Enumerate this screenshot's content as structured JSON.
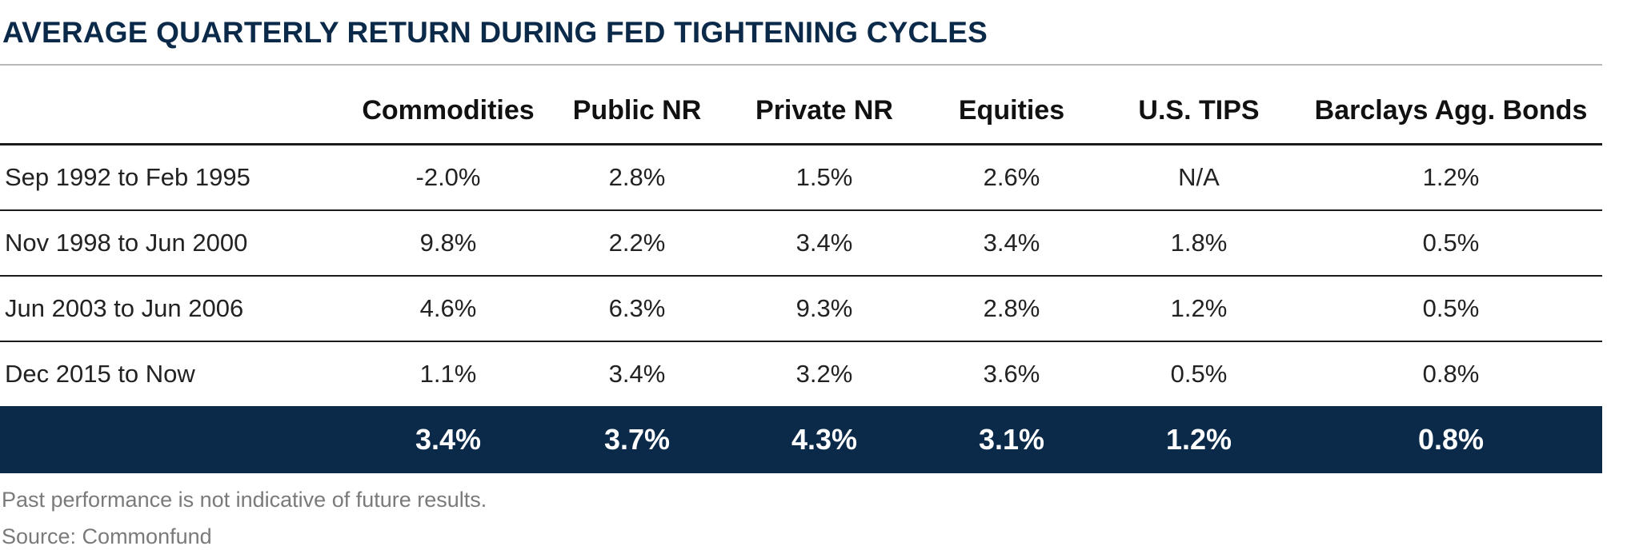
{
  "title": "AVERAGE QUARTERLY RETURN DURING FED TIGHTENING CYCLES",
  "table": {
    "columns": [
      "",
      "Commodities",
      "Public NR",
      "Private NR",
      "Equities",
      "U.S. TIPS",
      "Barclays Agg. Bonds"
    ],
    "rows": [
      {
        "period": "Sep 1992 to Feb 1995",
        "values": [
          "-2.0%",
          "2.8%",
          "1.5%",
          "2.6%",
          "N/A",
          "1.2%"
        ]
      },
      {
        "period": "Nov 1998 to Jun 2000",
        "values": [
          "9.8%",
          "2.2%",
          "3.4%",
          "3.4%",
          "1.8%",
          "0.5%"
        ]
      },
      {
        "period": "Jun 2003 to Jun 2006",
        "values": [
          "4.6%",
          "6.3%",
          "9.3%",
          "2.8%",
          "1.2%",
          "0.5%"
        ]
      },
      {
        "period": "Dec 2015 to Now",
        "values": [
          "1.1%",
          "3.4%",
          "3.2%",
          "3.6%",
          "0.5%",
          "0.8%"
        ]
      }
    ],
    "average": {
      "label": "",
      "values": [
        "3.4%",
        "3.7%",
        "4.3%",
        "3.1%",
        "1.2%",
        "0.8%"
      ]
    }
  },
  "footnote": "Past performance is not indicative of future results.",
  "source": "Source:  Commonfund",
  "colors": {
    "title": "#0b2a4a",
    "summary_background": "#0b2a4a",
    "summary_text": "#ffffff",
    "note_text": "#7a7a7a"
  }
}
